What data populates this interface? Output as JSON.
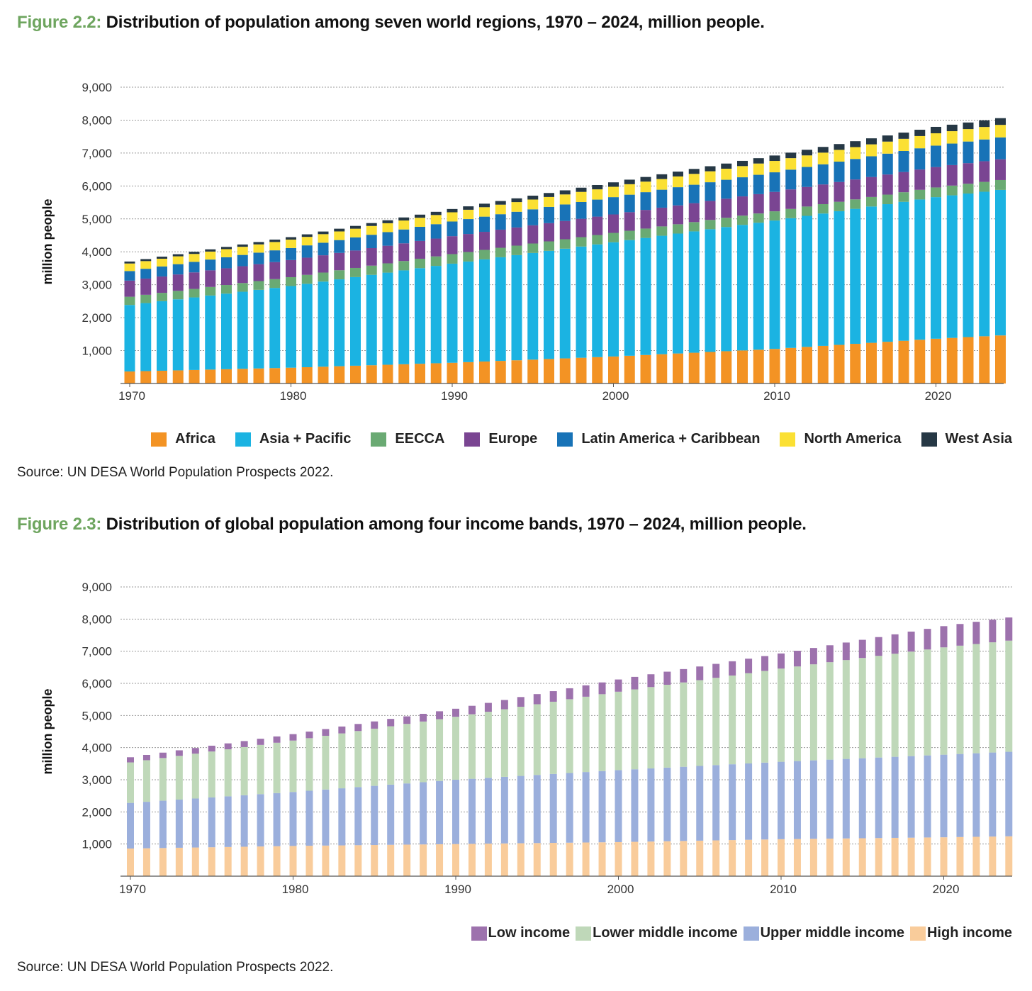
{
  "figures": [
    {
      "label": "Figure 2.2:",
      "title": "Distribution of population among seven world regions, 1970 – 2024, million people.",
      "source": "Source: UN DESA World Population Prospects 2022."
    },
    {
      "label": "Figure 2.3:",
      "title": "Distribution of global population among four income bands, 1970 – 2024, million people.",
      "source": "Source: UN DESA World Population Prospects 2022."
    }
  ],
  "chart_data": [
    {
      "type": "bar",
      "stacked": true,
      "title": "Distribution of population among seven world regions, 1970 – 2024, million people.",
      "xlabel": "",
      "ylabel": "million people",
      "ylim": [
        0,
        9000
      ],
      "yticks": [
        1000,
        2000,
        3000,
        4000,
        5000,
        6000,
        7000,
        8000,
        9000
      ],
      "ytick_labels": [
        "1,000",
        "2,000",
        "3,000",
        "4,000",
        "5,000",
        "6,000",
        "7,000",
        "8,000",
        "9,000"
      ],
      "xticks": [
        1970,
        1980,
        1990,
        2000,
        2010,
        2020
      ],
      "x_start": 1970,
      "x_end": 2024,
      "grid": "horizontal dotted",
      "legend_position": "bottom-right",
      "series": [
        {
          "name": "Africa",
          "color": "#f39324",
          "anchors": [
            [
              1970,
              365
            ],
            [
              1980,
              480
            ],
            [
              1990,
              630
            ],
            [
              2000,
              820
            ],
            [
              2010,
              1050
            ],
            [
              2020,
              1360
            ],
            [
              2024,
              1460
            ]
          ]
        },
        {
          "name": "Asia + Pacific",
          "color": "#1bb3e2",
          "anchors": [
            [
              1970,
              2020
            ],
            [
              1980,
              2480
            ],
            [
              1990,
              3010
            ],
            [
              2000,
              3470
            ],
            [
              2010,
              3900
            ],
            [
              2020,
              4300
            ],
            [
              2024,
              4420
            ]
          ]
        },
        {
          "name": "EECCA",
          "color": "#6aaa73",
          "anchors": [
            [
              1970,
              250
            ],
            [
              1980,
              270
            ],
            [
              1990,
              290
            ],
            [
              2000,
              285
            ],
            [
              2010,
              280
            ],
            [
              2020,
              295
            ],
            [
              2024,
              300
            ]
          ]
        },
        {
          "name": "Europe",
          "color": "#7a4592",
          "anchors": [
            [
              1970,
              490
            ],
            [
              1980,
              520
            ],
            [
              1990,
              545
            ],
            [
              2000,
              560
            ],
            [
              2010,
              590
            ],
            [
              2020,
              620
            ],
            [
              2024,
              630
            ]
          ]
        },
        {
          "name": "Latin America + Caribbean",
          "color": "#1873b7",
          "anchors": [
            [
              1970,
              290
            ],
            [
              1980,
              365
            ],
            [
              1990,
              445
            ],
            [
              2000,
              525
            ],
            [
              2010,
              595
            ],
            [
              2020,
              650
            ],
            [
              2024,
              665
            ]
          ]
        },
        {
          "name": "North America",
          "color": "#fbe033",
          "anchors": [
            [
              1970,
              230
            ],
            [
              1980,
              255
            ],
            [
              1990,
              280
            ],
            [
              2000,
              315
            ],
            [
              2010,
              345
            ],
            [
              2020,
              375
            ],
            [
              2024,
              380
            ]
          ]
        },
        {
          "name": "West Asia",
          "color": "#263845",
          "anchors": [
            [
              1970,
              60
            ],
            [
              1980,
              75
            ],
            [
              1990,
              100
            ],
            [
              2000,
              135
            ],
            [
              2010,
              165
            ],
            [
              2020,
              195
            ],
            [
              2024,
              205
            ]
          ]
        }
      ]
    },
    {
      "type": "bar",
      "stacked": true,
      "title": "Distribution of global population among four income bands, 1970 – 2024, million people.",
      "xlabel": "",
      "ylabel": "million people",
      "ylim": [
        0,
        9000
      ],
      "yticks": [
        1000,
        2000,
        3000,
        4000,
        5000,
        6000,
        7000,
        8000,
        9000
      ],
      "ytick_labels": [
        "1,000",
        "2,000",
        "3,000",
        "4,000",
        "5,000",
        "6,000",
        "7,000",
        "8,000",
        "9,000"
      ],
      "xticks": [
        1970,
        1980,
        1990,
        2000,
        2010,
        2020
      ],
      "x_start": 1970,
      "x_end": 2024,
      "grid": "horizontal dotted",
      "legend_position": "bottom-right",
      "series": [
        {
          "name": "High income",
          "color": "#f9cc9b",
          "anchors": [
            [
              1970,
              860
            ],
            [
              1980,
              940
            ],
            [
              1990,
              1000
            ],
            [
              2000,
              1060
            ],
            [
              2010,
              1150
            ],
            [
              2020,
              1210
            ],
            [
              2024,
              1240
            ]
          ]
        },
        {
          "name": "Upper middle income",
          "color": "#9bafdc",
          "anchors": [
            [
              1970,
              1420
            ],
            [
              1980,
              1680
            ],
            [
              1990,
              2000
            ],
            [
              2000,
              2240
            ],
            [
              2010,
              2410
            ],
            [
              2020,
              2570
            ],
            [
              2024,
              2630
            ]
          ]
        },
        {
          "name": "Lower middle income",
          "color": "#bfd8b9",
          "anchors": [
            [
              1970,
              1260
            ],
            [
              1980,
              1600
            ],
            [
              1990,
              1960
            ],
            [
              2000,
              2440
            ],
            [
              2010,
              2900
            ],
            [
              2020,
              3340
            ],
            [
              2024,
              3460
            ]
          ]
        },
        {
          "name": "Low income",
          "color": "#9d72ad",
          "anchors": [
            [
              1970,
              160
            ],
            [
              1980,
              200
            ],
            [
              1990,
              250
            ],
            [
              2000,
              380
            ],
            [
              2010,
              470
            ],
            [
              2020,
              660
            ],
            [
              2024,
              720
            ]
          ]
        }
      ]
    }
  ]
}
